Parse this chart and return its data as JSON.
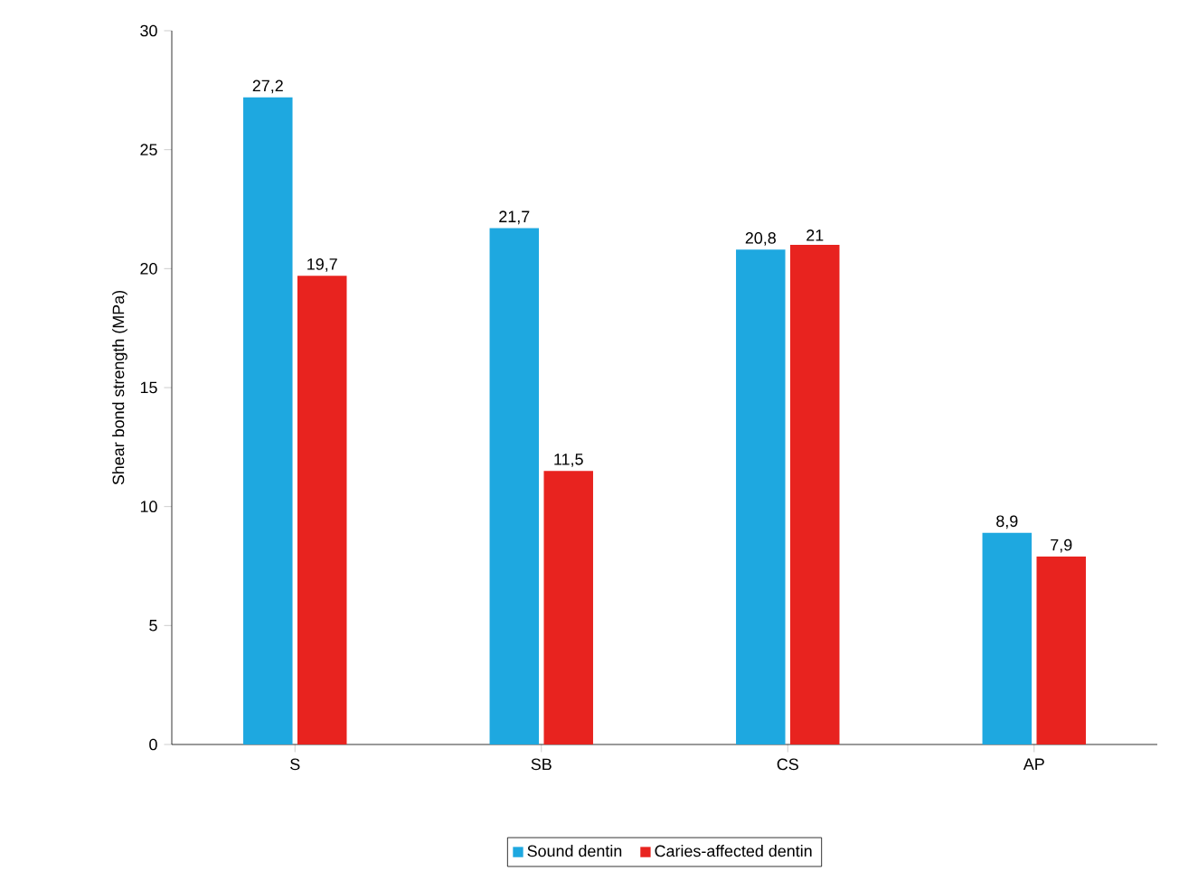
{
  "chart_data": {
    "type": "bar",
    "ylabel": "Shear bond strength (MPa)",
    "categories": [
      "S",
      "SB",
      "CS",
      "AP"
    ],
    "series": [
      {
        "name": "Sound dentin",
        "color": "#1ea8e0",
        "values": [
          27.2,
          21.7,
          20.8,
          8.9
        ],
        "value_labels": [
          "27,2",
          "21,7",
          "20,8",
          "8,9"
        ]
      },
      {
        "name": "Caries-affected dentin",
        "color": "#e8231f",
        "values": [
          19.7,
          11.5,
          21,
          7.9
        ],
        "value_labels": [
          "19,7",
          "11,5",
          "21",
          "7,9"
        ]
      }
    ],
    "ylim": [
      0,
      30
    ],
    "yticks": [
      0,
      5,
      10,
      15,
      20,
      25,
      30
    ],
    "grid": false,
    "legend": "bottom"
  }
}
